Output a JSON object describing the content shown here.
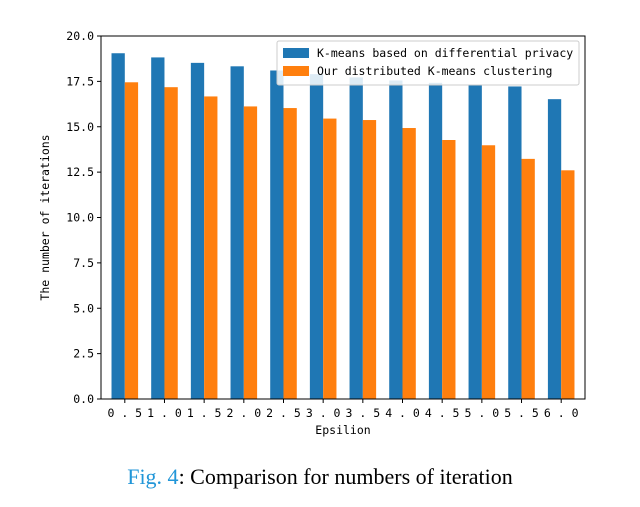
{
  "chart_data": {
    "type": "bar",
    "xlabel": "Epsilion",
    "ylabel": "The number of iterations",
    "ylim": [
      0,
      20
    ],
    "yticks": [
      "0.0",
      "2.5",
      "5.0",
      "7.5",
      "10.0",
      "12.5",
      "15.0",
      "17.5",
      "20.0"
    ],
    "categories": [
      "0.5",
      "1.0",
      "1.5",
      "2.0",
      "2.5",
      "3.0",
      "3.5",
      "4.0",
      "4.5",
      "5.0",
      "5.5",
      "6.0"
    ],
    "series": [
      {
        "name": "K-means based on differential privacy",
        "color": "#1f77b4",
        "values": [
          19.05,
          18.82,
          18.52,
          18.33,
          18.1,
          17.9,
          17.72,
          17.55,
          17.42,
          17.3,
          17.22,
          16.52
        ]
      },
      {
        "name": "Our distributed K-means clustering",
        "color": "#ff7f0e",
        "values": [
          17.45,
          17.18,
          16.67,
          16.12,
          16.03,
          15.45,
          15.37,
          14.93,
          14.27,
          13.98,
          13.23,
          12.6
        ]
      }
    ],
    "legend": "top-right",
    "grid": false
  },
  "caption": {
    "fig_label": "Fig. 4",
    "text": ": Comparison for numbers of iteration"
  }
}
